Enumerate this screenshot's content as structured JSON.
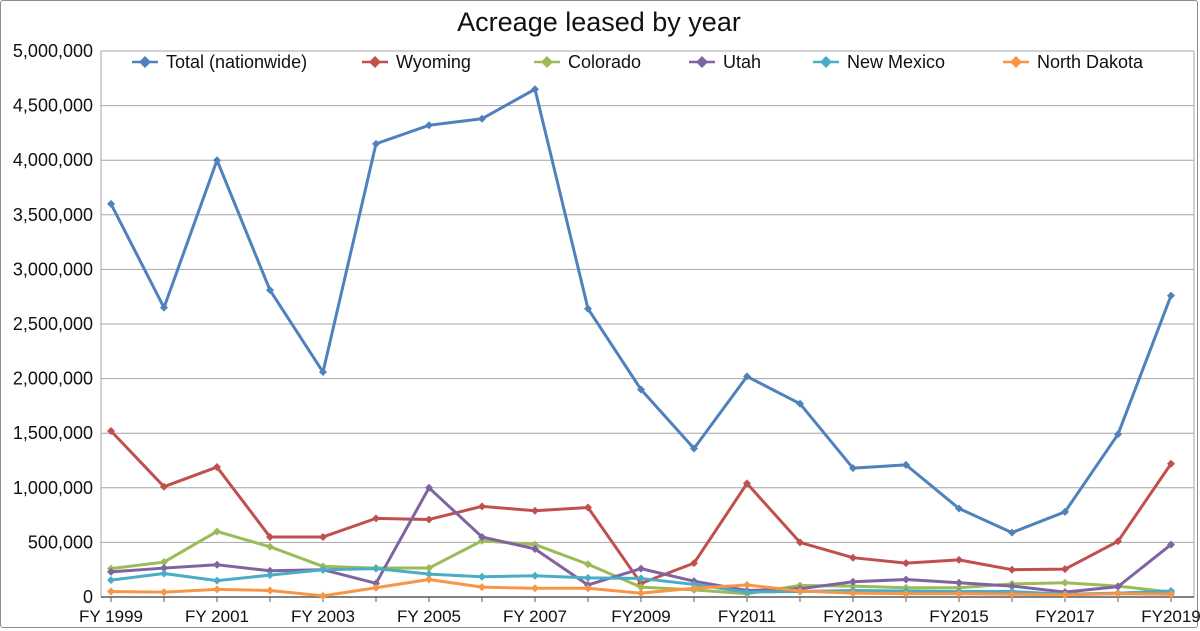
{
  "chart": {
    "title": "Acreage leased by year"
  },
  "chart_data": {
    "type": "line",
    "title": "Acreage leased by year",
    "xlabel": "",
    "ylabel": "",
    "x_years": [
      1999,
      2000,
      2001,
      2002,
      2003,
      2004,
      2005,
      2006,
      2007,
      2008,
      2009,
      2010,
      2011,
      2012,
      2013,
      2014,
      2015,
      2016,
      2017,
      2018,
      2019
    ],
    "x_tick_labels": [
      "FY 1999",
      "FY 2001",
      "FY 2003",
      "FY 2005",
      "FY 2007",
      "FY2009",
      "FY2011",
      "FY2013",
      "FY2015",
      "FY2017",
      "FY2019"
    ],
    "y_tick_labels": [
      "0",
      "500,000",
      "1,000,000",
      "1,500,000",
      "2,000,000",
      "2,500,000",
      "3,000,000",
      "3,500,000",
      "4,000,000",
      "4,500,000",
      "5,000,000"
    ],
    "ylim": [
      0,
      5000000
    ],
    "y_tick_step": 500000,
    "grid": true,
    "legend_position": "top",
    "series": [
      {
        "name": "Total (nationwide)",
        "color": "#4F81BD",
        "values": [
          3600000,
          2650000,
          4000000,
          2810000,
          2060000,
          4150000,
          4320000,
          4380000,
          4650000,
          2640000,
          1900000,
          1360000,
          2020000,
          1770000,
          1180000,
          1210000,
          810000,
          590000,
          780000,
          1490000,
          2760000
        ]
      },
      {
        "name": "Wyoming",
        "color": "#C0504D",
        "values": [
          1520000,
          1010000,
          1190000,
          550000,
          550000,
          720000,
          710000,
          830000,
          790000,
          820000,
          125000,
          310000,
          1040000,
          500000,
          360000,
          310000,
          340000,
          250000,
          255000,
          510000,
          1220000
        ]
      },
      {
        "name": "Colorado",
        "color": "#9BBB59",
        "values": [
          260000,
          320000,
          600000,
          460000,
          280000,
          265000,
          265000,
          515000,
          480000,
          300000,
          90000,
          65000,
          30000,
          105000,
          100000,
          85000,
          85000,
          120000,
          130000,
          100000,
          45000
        ]
      },
      {
        "name": "Utah",
        "color": "#8064A2",
        "values": [
          230000,
          265000,
          295000,
          240000,
          250000,
          125000,
          1000000,
          550000,
          440000,
          110000,
          260000,
          145000,
          60000,
          75000,
          140000,
          160000,
          130000,
          100000,
          45000,
          95000,
          480000
        ]
      },
      {
        "name": "New Mexico",
        "color": "#4BACC6",
        "values": [
          155000,
          215000,
          150000,
          200000,
          250000,
          260000,
          210000,
          185000,
          195000,
          175000,
          170000,
          115000,
          45000,
          50000,
          60000,
          55000,
          50000,
          50000,
          25000,
          35000,
          55000
        ]
      },
      {
        "name": "North Dakota",
        "color": "#F79646",
        "values": [
          50000,
          45000,
          70000,
          60000,
          10000,
          85000,
          160000,
          90000,
          80000,
          80000,
          35000,
          80000,
          110000,
          55000,
          35000,
          30000,
          30000,
          25000,
          20000,
          30000,
          25000
        ]
      }
    ]
  }
}
